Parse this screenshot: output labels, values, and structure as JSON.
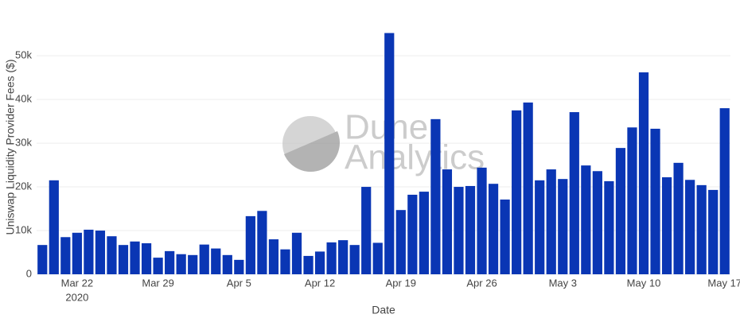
{
  "chart_data": {
    "type": "bar",
    "x_label": "Date",
    "y_label": "Uniswap Liquidity Provider Fees ($)",
    "watermark": [
      "Dune",
      "Analytics"
    ],
    "color": "#0a36b4",
    "grid": true,
    "x": [
      "2020-03-19",
      "2020-03-20",
      "2020-03-21",
      "2020-03-22",
      "2020-03-23",
      "2020-03-24",
      "2020-03-25",
      "2020-03-26",
      "2020-03-27",
      "2020-03-28",
      "2020-03-29",
      "2020-03-30",
      "2020-03-31",
      "2020-04-01",
      "2020-04-02",
      "2020-04-03",
      "2020-04-04",
      "2020-04-05",
      "2020-04-06",
      "2020-04-07",
      "2020-04-08",
      "2020-04-09",
      "2020-04-10",
      "2020-04-11",
      "2020-04-12",
      "2020-04-13",
      "2020-04-14",
      "2020-04-15",
      "2020-04-16",
      "2020-04-17",
      "2020-04-18",
      "2020-04-19",
      "2020-04-20",
      "2020-04-21",
      "2020-04-22",
      "2020-04-23",
      "2020-04-24",
      "2020-04-25",
      "2020-04-26",
      "2020-04-27",
      "2020-04-28",
      "2020-04-29",
      "2020-04-30",
      "2020-05-01",
      "2020-05-02",
      "2020-05-03",
      "2020-05-04",
      "2020-05-05",
      "2020-05-06",
      "2020-05-07",
      "2020-05-08",
      "2020-05-09",
      "2020-05-10",
      "2020-05-11",
      "2020-05-12",
      "2020-05-13",
      "2020-05-14",
      "2020-05-15",
      "2020-05-16",
      "2020-05-17"
    ],
    "values": [
      6700,
      21500,
      8500,
      9500,
      10200,
      10000,
      8700,
      6700,
      7500,
      7100,
      3800,
      5300,
      4600,
      4400,
      6800,
      5900,
      4400,
      3300,
      13300,
      14500,
      8000,
      5700,
      9500,
      4200,
      5200,
      7300,
      7800,
      6700,
      20000,
      7200,
      55200,
      14700,
      18200,
      18900,
      35500,
      24000,
      20000,
      20200,
      24400,
      20700,
      17100,
      37500,
      39300,
      21500,
      24000,
      21800,
      37100,
      24900,
      23600,
      21300,
      28900,
      33600,
      46200,
      33300,
      22200,
      25500,
      21600,
      20400,
      19300,
      38000
    ],
    "xlim": [
      "2020-03-18T12:00:00Z",
      "2020-05-17T12:00:00Z"
    ],
    "xticks": [
      {
        "value": "2020-03-22",
        "label": "Mar 22"
      },
      {
        "value": "2020-03-29",
        "label": "Mar 29"
      },
      {
        "value": "2020-04-05",
        "label": "Apr 5"
      },
      {
        "value": "2020-04-12",
        "label": "Apr 12"
      },
      {
        "value": "2020-04-19",
        "label": "Apr 19"
      },
      {
        "value": "2020-04-26",
        "label": "Apr 26"
      },
      {
        "value": "2020-05-03",
        "label": "May 3"
      },
      {
        "value": "2020-05-10",
        "label": "May 10"
      },
      {
        "value": "2020-05-17",
        "label": "May 17"
      }
    ],
    "x_year_label": "2020",
    "ylim": [
      0,
      55300
    ],
    "yticks": [
      0,
      {
        "value": 10000,
        "label": "10k"
      },
      {
        "value": 20000,
        "label": "20k"
      },
      {
        "value": 30000,
        "label": "30k"
      },
      {
        "value": 40000,
        "label": "40k"
      },
      {
        "value": 50000,
        "label": "50k"
      }
    ]
  }
}
